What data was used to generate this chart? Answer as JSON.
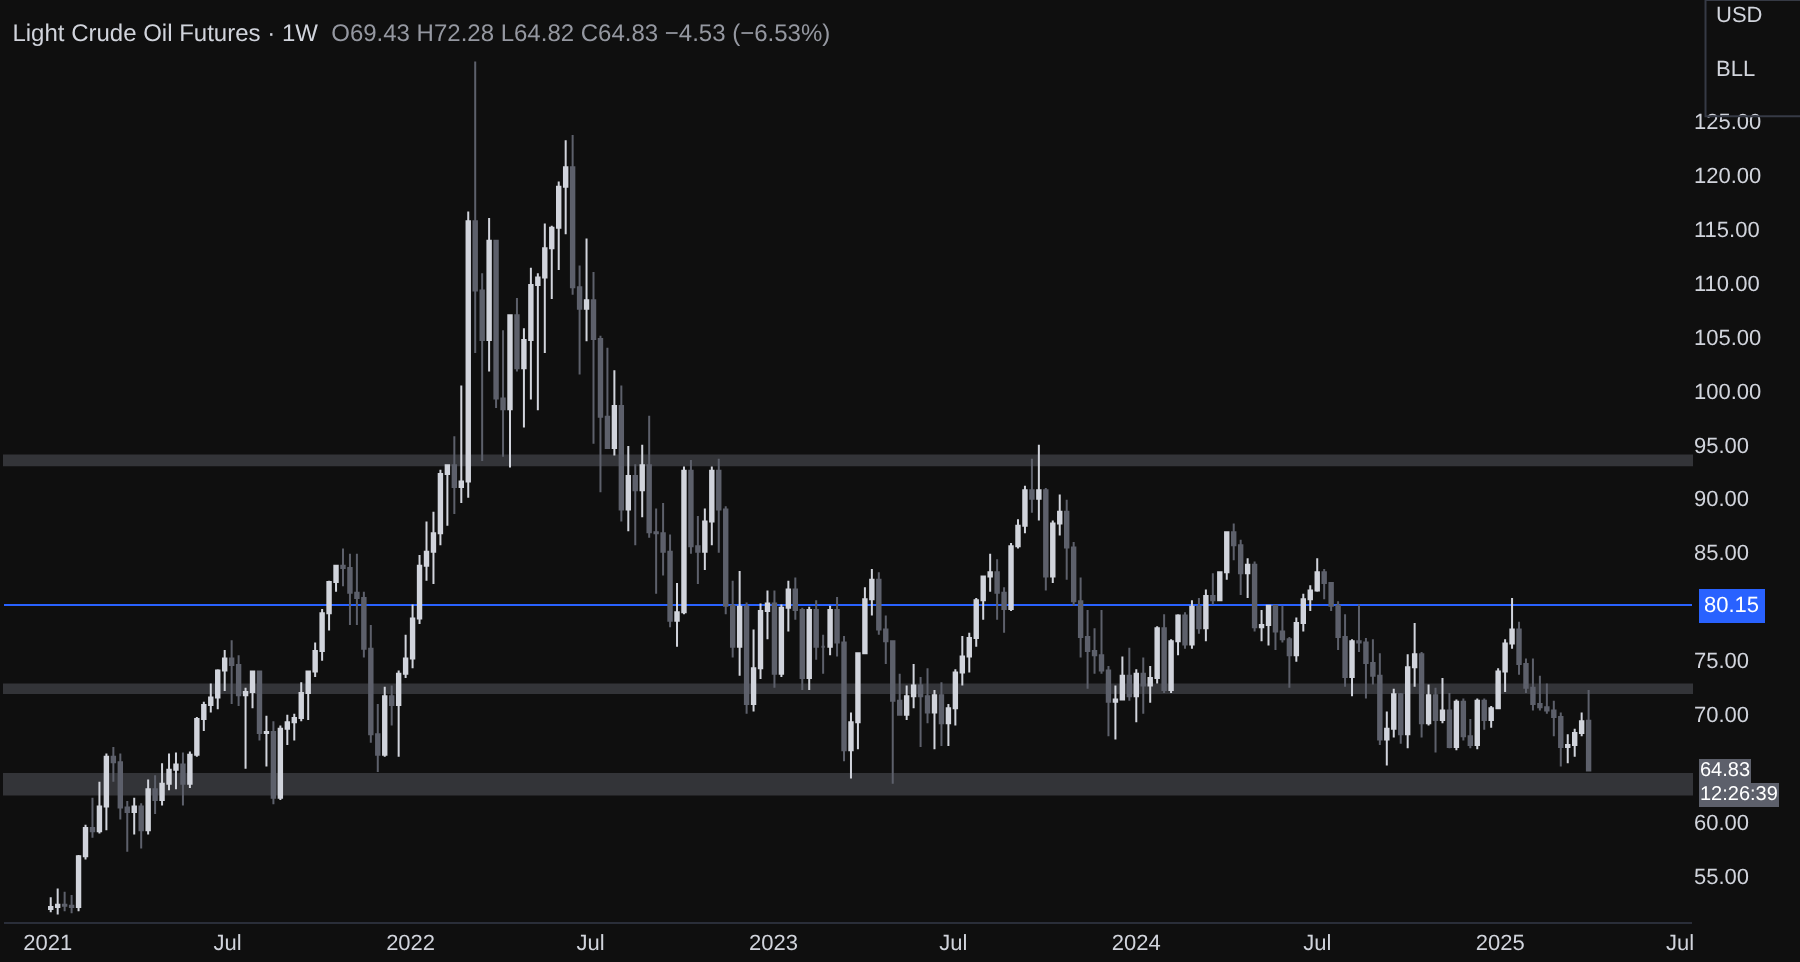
{
  "chart_data": {
    "type": "candlestick",
    "title": "Light Crude Oil Futures · 1W",
    "subtitle": "O69.43 H72.28 L64.82 C64.83 −4.53 (−6.53%)",
    "x": [
      "2021-01-04",
      "2021-01-11",
      "2021-01-18",
      "2021-01-25",
      "2021-02-01",
      "2021-02-08",
      "2021-02-15",
      "2021-02-22",
      "2021-03-01",
      "2021-03-08",
      "2021-03-15",
      "2021-03-22",
      "2021-03-29",
      "2021-04-05",
      "2021-04-12",
      "2021-04-19",
      "2021-04-26",
      "2021-05-03",
      "2021-05-10",
      "2021-05-17",
      "2021-05-24",
      "2021-05-31",
      "2021-06-07",
      "2021-06-14",
      "2021-06-21",
      "2021-06-28",
      "2021-07-05",
      "2021-07-12",
      "2021-07-19",
      "2021-07-26",
      "2021-08-02",
      "2021-08-09",
      "2021-08-16",
      "2021-08-23",
      "2021-08-30",
      "2021-09-06",
      "2021-09-13",
      "2021-09-20",
      "2021-09-27",
      "2021-10-04",
      "2021-10-11",
      "2021-10-18",
      "2021-10-25",
      "2021-11-01",
      "2021-11-08",
      "2021-11-15",
      "2021-11-22",
      "2021-11-29",
      "2021-12-06",
      "2021-12-13",
      "2021-12-20",
      "2021-12-27",
      "2022-01-03",
      "2022-01-10",
      "2022-01-17",
      "2022-01-24",
      "2022-01-31",
      "2022-02-07",
      "2022-02-14",
      "2022-02-21",
      "2022-02-28",
      "2022-03-07",
      "2022-03-14",
      "2022-03-21",
      "2022-03-28",
      "2022-04-04",
      "2022-04-11",
      "2022-04-18",
      "2022-04-25",
      "2022-05-02",
      "2022-05-09",
      "2022-05-16",
      "2022-05-23",
      "2022-05-30",
      "2022-06-06",
      "2022-06-13",
      "2022-06-20",
      "2022-06-27",
      "2022-07-04",
      "2022-07-11",
      "2022-07-18",
      "2022-07-25",
      "2022-08-01",
      "2022-08-08",
      "2022-08-15",
      "2022-08-22",
      "2022-08-29",
      "2022-09-05",
      "2022-09-12",
      "2022-09-19",
      "2022-09-26",
      "2022-10-03",
      "2022-10-10",
      "2022-10-17",
      "2022-10-24",
      "2022-10-31",
      "2022-11-07",
      "2022-11-14",
      "2022-11-21",
      "2022-11-28",
      "2022-12-05",
      "2022-12-12",
      "2022-12-19",
      "2022-12-26",
      "2023-01-02",
      "2023-01-09",
      "2023-01-16",
      "2023-01-23",
      "2023-01-30",
      "2023-02-06",
      "2023-02-13",
      "2023-02-20",
      "2023-02-27",
      "2023-03-06",
      "2023-03-13",
      "2023-03-20",
      "2023-03-27",
      "2023-04-03",
      "2023-04-10",
      "2023-04-17",
      "2023-04-24",
      "2023-05-01",
      "2023-05-08",
      "2023-05-15",
      "2023-05-22",
      "2023-05-29",
      "2023-06-05",
      "2023-06-12",
      "2023-06-19",
      "2023-06-26",
      "2023-07-03",
      "2023-07-10",
      "2023-07-17",
      "2023-07-24",
      "2023-07-31",
      "2023-08-07",
      "2023-08-14",
      "2023-08-21",
      "2023-08-28",
      "2023-09-04",
      "2023-09-11",
      "2023-09-18",
      "2023-09-25",
      "2023-10-02",
      "2023-10-09",
      "2023-10-16",
      "2023-10-23",
      "2023-10-30",
      "2023-11-06",
      "2023-11-13",
      "2023-11-20",
      "2023-11-27",
      "2023-12-04",
      "2023-12-11",
      "2023-12-18",
      "2023-12-25",
      "2024-01-01",
      "2024-01-08",
      "2024-01-15",
      "2024-01-22",
      "2024-01-29",
      "2024-02-05",
      "2024-02-12",
      "2024-02-19",
      "2024-02-26",
      "2024-03-04",
      "2024-03-11",
      "2024-03-18",
      "2024-03-25",
      "2024-04-01",
      "2024-04-08",
      "2024-04-15",
      "2024-04-22",
      "2024-04-29",
      "2024-05-06",
      "2024-05-13",
      "2024-05-20",
      "2024-05-27",
      "2024-06-03",
      "2024-06-10",
      "2024-06-17",
      "2024-06-24",
      "2024-07-01",
      "2024-07-08",
      "2024-07-15",
      "2024-07-22",
      "2024-07-29",
      "2024-08-05",
      "2024-08-12",
      "2024-08-19",
      "2024-08-26",
      "2024-09-02",
      "2024-09-09",
      "2024-09-16",
      "2024-09-23",
      "2024-09-30",
      "2024-10-07",
      "2024-10-14",
      "2024-10-21",
      "2024-10-28",
      "2024-11-04",
      "2024-11-11",
      "2024-11-18",
      "2024-11-25",
      "2024-12-02",
      "2024-12-09",
      "2024-12-16",
      "2024-12-23",
      "2024-12-30",
      "2025-01-06",
      "2025-01-13",
      "2025-01-20",
      "2025-01-27",
      "2025-02-03",
      "2025-02-10",
      "2025-02-17",
      "2025-02-24",
      "2025-03-03",
      "2025-03-10",
      "2025-03-17",
      "2025-03-24",
      "2025-03-31"
    ],
    "ohlc": [
      [
        52.0,
        53.1,
        51.7,
        52.2
      ],
      [
        52.2,
        53.9,
        51.5,
        52.4
      ],
      [
        52.4,
        53.6,
        51.8,
        52.3
      ],
      [
        52.3,
        53.3,
        51.6,
        52.2
      ],
      [
        52.2,
        57.0,
        51.8,
        56.9
      ],
      [
        56.9,
        59.8,
        56.6,
        59.5
      ],
      [
        59.5,
        62.3,
        58.6,
        59.2
      ],
      [
        59.2,
        63.8,
        59.0,
        61.5
      ],
      [
        61.5,
        66.4,
        59.3,
        66.1
      ],
      [
        66.1,
        67.0,
        63.8,
        65.6
      ],
      [
        65.6,
        66.4,
        60.3,
        61.4
      ],
      [
        61.4,
        62.0,
        57.3,
        61.0
      ],
      [
        61.0,
        62.3,
        58.9,
        61.5
      ],
      [
        61.5,
        61.8,
        57.6,
        59.3
      ],
      [
        59.3,
        64.0,
        58.9,
        63.1
      ],
      [
        63.1,
        64.4,
        60.8,
        62.1
      ],
      [
        62.1,
        65.5,
        61.6,
        63.6
      ],
      [
        63.6,
        66.4,
        63.0,
        64.9
      ],
      [
        64.9,
        66.5,
        63.1,
        65.4
      ],
      [
        65.4,
        66.5,
        61.6,
        63.6
      ],
      [
        63.6,
        66.6,
        63.2,
        66.3
      ],
      [
        66.3,
        69.8,
        66.1,
        69.6
      ],
      [
        69.6,
        71.2,
        68.5,
        70.9
      ],
      [
        70.9,
        72.9,
        70.2,
        71.6
      ],
      [
        71.6,
        74.2,
        70.5,
        74.1
      ],
      [
        74.1,
        76.0,
        72.2,
        75.2
      ],
      [
        75.2,
        76.9,
        71.0,
        74.6
      ],
      [
        74.6,
        75.5,
        70.8,
        71.8
      ],
      [
        71.8,
        72.5,
        65.0,
        72.1
      ],
      [
        72.1,
        74.0,
        70.6,
        74.0
      ],
      [
        74.0,
        74.1,
        67.6,
        68.3
      ],
      [
        68.3,
        69.9,
        65.2,
        68.4
      ],
      [
        68.4,
        69.4,
        61.7,
        62.3
      ],
      [
        62.3,
        69.0,
        62.1,
        68.7
      ],
      [
        68.7,
        70.0,
        67.2,
        69.3
      ],
      [
        69.3,
        70.1,
        67.6,
        69.7
      ],
      [
        69.7,
        73.0,
        69.4,
        72.0
      ],
      [
        72.0,
        74.0,
        69.5,
        74.0
      ],
      [
        74.0,
        76.7,
        73.5,
        75.9
      ],
      [
        75.9,
        79.8,
        75.0,
        79.4
      ],
      [
        79.4,
        82.4,
        77.8,
        82.3
      ],
      [
        82.3,
        83.9,
        81.4,
        83.8
      ],
      [
        83.8,
        85.4,
        81.9,
        83.6
      ],
      [
        83.6,
        84.9,
        78.3,
        81.3
      ],
      [
        81.3,
        84.9,
        78.3,
        80.8
      ],
      [
        80.8,
        81.4,
        75.3,
        76.1
      ],
      [
        76.1,
        78.3,
        67.4,
        68.2
      ],
      [
        68.2,
        71.0,
        64.7,
        66.3
      ],
      [
        66.3,
        72.6,
        66.1,
        71.7
      ],
      [
        71.7,
        72.7,
        69.0,
        70.9
      ],
      [
        70.9,
        74.1,
        66.1,
        73.8
      ],
      [
        73.8,
        77.4,
        73.4,
        75.2
      ],
      [
        75.2,
        80.2,
        74.3,
        78.9
      ],
      [
        78.9,
        84.8,
        78.4,
        83.8
      ],
      [
        83.8,
        87.9,
        82.4,
        85.1
      ],
      [
        85.1,
        88.8,
        82.1,
        86.8
      ],
      [
        86.8,
        92.7,
        85.7,
        92.3
      ],
      [
        92.3,
        93.2,
        87.5,
        93.1
      ],
      [
        93.1,
        95.8,
        88.6,
        91.1
      ],
      [
        91.1,
        100.5,
        89.6,
        91.6
      ],
      [
        91.6,
        116.6,
        90.1,
        115.7
      ],
      [
        115.7,
        130.5,
        103.5,
        109.3
      ],
      [
        109.3,
        110.9,
        93.5,
        104.7
      ],
      [
        104.7,
        116.0,
        101.8,
        113.9
      ],
      [
        113.9,
        114.0,
        98.4,
        99.3
      ],
      [
        99.3,
        105.6,
        93.9,
        98.3
      ],
      [
        98.3,
        107.0,
        92.9,
        107.0
      ],
      [
        107.0,
        108.6,
        101.8,
        102.1
      ],
      [
        102.1,
        105.8,
        96.6,
        104.7
      ],
      [
        104.7,
        111.4,
        99.2,
        109.8
      ],
      [
        109.8,
        110.9,
        98.2,
        110.5
      ],
      [
        110.5,
        115.5,
        103.5,
        113.2
      ],
      [
        113.2,
        115.3,
        108.5,
        115.1
      ],
      [
        115.1,
        119.4,
        111.2,
        118.9
      ],
      [
        118.9,
        123.2,
        114.5,
        120.7
      ],
      [
        120.7,
        123.7,
        108.9,
        109.6
      ],
      [
        109.6,
        111.6,
        101.5,
        107.6
      ],
      [
        107.6,
        114.1,
        104.6,
        108.4
      ],
      [
        108.4,
        111.0,
        95.1,
        104.8
      ],
      [
        104.8,
        105.1,
        90.6,
        97.6
      ],
      [
        97.6,
        104.0,
        94.7,
        94.7
      ],
      [
        94.7,
        101.9,
        94.0,
        98.6
      ],
      [
        98.6,
        100.5,
        87.9,
        89.0
      ],
      [
        89.0,
        94.9,
        87.0,
        92.1
      ],
      [
        92.1,
        93.2,
        85.7,
        90.8
      ],
      [
        90.8,
        95.0,
        88.3,
        93.1
      ],
      [
        93.1,
        97.7,
        86.4,
        86.9
      ],
      [
        86.9,
        89.1,
        81.2,
        86.8
      ],
      [
        86.8,
        89.6,
        82.9,
        85.1
      ],
      [
        85.1,
        86.7,
        78.1,
        78.7
      ],
      [
        78.7,
        82.2,
        76.3,
        79.5
      ],
      [
        79.5,
        93.0,
        79.3,
        92.6
      ],
      [
        92.6,
        93.6,
        84.9,
        85.6
      ],
      [
        85.6,
        88.4,
        82.1,
        85.1
      ],
      [
        85.1,
        89.1,
        83.4,
        87.9
      ],
      [
        87.9,
        93.0,
        85.7,
        92.6
      ],
      [
        92.6,
        93.7,
        85.0,
        89.0
      ],
      [
        89.0,
        89.3,
        79.3,
        80.1
      ],
      [
        80.1,
        82.4,
        75.3,
        76.3
      ],
      [
        76.3,
        83.3,
        73.6,
        80.0
      ],
      [
        80.0,
        80.4,
        70.1,
        71.0
      ],
      [
        71.0,
        77.9,
        70.3,
        74.3
      ],
      [
        74.3,
        80.3,
        73.3,
        79.6
      ],
      [
        79.6,
        81.5,
        77.0,
        80.3
      ],
      [
        80.3,
        81.5,
        72.5,
        73.8
      ],
      [
        73.8,
        80.2,
        73.5,
        79.9
      ],
      [
        79.9,
        82.4,
        77.7,
        81.6
      ],
      [
        81.6,
        82.7,
        78.8,
        79.7
      ],
      [
        79.7,
        79.9,
        72.3,
        73.4
      ],
      [
        73.4,
        80.0,
        72.3,
        79.7
      ],
      [
        79.7,
        80.6,
        75.1,
        76.3
      ],
      [
        76.3,
        77.4,
        73.8,
        76.3
      ],
      [
        76.3,
        80.1,
        75.5,
        79.7
      ],
      [
        79.7,
        80.9,
        75.4,
        76.7
      ],
      [
        76.7,
        77.3,
        65.7,
        66.7
      ],
      [
        66.7,
        70.2,
        64.1,
        69.3
      ],
      [
        69.3,
        75.7,
        66.8,
        75.7
      ],
      [
        75.7,
        81.8,
        75.6,
        80.7
      ],
      [
        80.7,
        83.5,
        79.2,
        82.5
      ],
      [
        82.5,
        83.2,
        77.4,
        77.9
      ],
      [
        77.9,
        79.2,
        74.7,
        76.8
      ],
      [
        76.8,
        76.9,
        63.6,
        71.3
      ],
      [
        71.3,
        73.8,
        70.0,
        70.0
      ],
      [
        70.0,
        72.7,
        69.5,
        71.7
      ],
      [
        71.7,
        74.7,
        70.6,
        72.7
      ],
      [
        72.7,
        73.5,
        67.0,
        71.7
      ],
      [
        71.7,
        74.3,
        69.2,
        70.2
      ],
      [
        70.2,
        72.3,
        66.8,
        71.8
      ],
      [
        71.8,
        73.0,
        67.1,
        69.2
      ],
      [
        69.2,
        71.0,
        67.1,
        70.6
      ],
      [
        70.6,
        74.2,
        69.0,
        73.9
      ],
      [
        73.9,
        77.3,
        72.7,
        75.4
      ],
      [
        75.4,
        77.6,
        73.9,
        77.1
      ],
      [
        77.1,
        80.8,
        76.3,
        80.6
      ],
      [
        80.6,
        82.9,
        78.8,
        82.8
      ],
      [
        82.8,
        84.9,
        81.4,
        83.2
      ],
      [
        83.2,
        84.4,
        78.8,
        81.3
      ],
      [
        81.3,
        81.8,
        77.6,
        79.8
      ],
      [
        79.8,
        85.9,
        79.6,
        85.6
      ],
      [
        85.6,
        88.1,
        85.4,
        87.5
      ],
      [
        87.5,
        91.2,
        86.8,
        90.8
      ],
      [
        90.8,
        93.7,
        88.7,
        90.0
      ],
      [
        90.0,
        95.0,
        88.0,
        90.8
      ],
      [
        90.8,
        91.0,
        81.5,
        82.8
      ],
      [
        82.8,
        88.0,
        82.2,
        87.7
      ],
      [
        87.7,
        90.4,
        86.6,
        88.8
      ],
      [
        88.8,
        89.9,
        82.5,
        85.5
      ],
      [
        85.5,
        86.0,
        80.1,
        80.5
      ],
      [
        80.5,
        82.7,
        75.3,
        77.2
      ],
      [
        77.2,
        79.7,
        72.4,
        75.9
      ],
      [
        75.9,
        78.0,
        73.8,
        75.5
      ],
      [
        75.5,
        79.7,
        73.8,
        74.1
      ],
      [
        74.1,
        74.5,
        68.0,
        71.2
      ],
      [
        71.2,
        72.7,
        67.7,
        71.4
      ],
      [
        71.4,
        75.4,
        71.4,
        73.6
      ],
      [
        73.6,
        76.2,
        71.3,
        71.7
      ],
      [
        71.7,
        74.2,
        69.3,
        73.8
      ],
      [
        73.8,
        75.3,
        70.1,
        72.7
      ],
      [
        72.7,
        74.5,
        71.1,
        73.4
      ],
      [
        73.4,
        78.2,
        72.9,
        78.0
      ],
      [
        78.0,
        79.3,
        72.0,
        72.3
      ],
      [
        72.3,
        77.0,
        72.0,
        76.8
      ],
      [
        76.8,
        79.3,
        75.5,
        79.2
      ],
      [
        79.2,
        79.5,
        76.1,
        76.5
      ],
      [
        76.5,
        80.6,
        76.1,
        80.0
      ],
      [
        80.0,
        80.8,
        77.5,
        78.0
      ],
      [
        78.0,
        81.6,
        76.8,
        81.0
      ],
      [
        81.0,
        83.1,
        80.2,
        80.6
      ],
      [
        80.6,
        83.2,
        80.6,
        83.2
      ],
      [
        83.2,
        87.0,
        82.5,
        86.9
      ],
      [
        86.9,
        87.7,
        84.3,
        85.7
      ],
      [
        85.7,
        86.2,
        81.1,
        83.1
      ],
      [
        83.1,
        84.5,
        80.8,
        83.9
      ],
      [
        83.9,
        84.2,
        77.7,
        78.1
      ],
      [
        78.1,
        79.7,
        76.8,
        78.3
      ],
      [
        78.3,
        80.1,
        76.4,
        80.1
      ],
      [
        80.1,
        80.1,
        76.0,
        77.7
      ],
      [
        77.7,
        80.1,
        76.7,
        77.0
      ],
      [
        77.0,
        77.2,
        72.5,
        75.5
      ],
      [
        75.5,
        79.0,
        74.9,
        78.5
      ],
      [
        78.5,
        81.2,
        77.7,
        80.7
      ],
      [
        80.7,
        82.0,
        79.6,
        81.5
      ],
      [
        81.5,
        84.5,
        81.4,
        83.2
      ],
      [
        83.2,
        83.5,
        80.7,
        82.2
      ],
      [
        82.2,
        82.3,
        79.6,
        80.1
      ],
      [
        80.1,
        80.5,
        76.0,
        77.2
      ],
      [
        77.2,
        79.3,
        72.6,
        73.5
      ],
      [
        73.5,
        77.0,
        71.7,
        76.8
      ],
      [
        76.8,
        80.2,
        75.8,
        76.7
      ],
      [
        76.7,
        77.1,
        71.5,
        74.8
      ],
      [
        74.8,
        77.0,
        72.8,
        73.6
      ],
      [
        73.6,
        75.7,
        67.2,
        67.7
      ],
      [
        67.7,
        70.3,
        65.3,
        68.7
      ],
      [
        68.7,
        72.4,
        67.9,
        71.9
      ],
      [
        71.9,
        72.0,
        67.3,
        68.2
      ],
      [
        68.2,
        75.6,
        66.9,
        74.4
      ],
      [
        74.4,
        78.5,
        72.6,
        75.6
      ],
      [
        75.6,
        75.8,
        67.9,
        69.2
      ],
      [
        69.2,
        72.8,
        69.0,
        71.8
      ],
      [
        71.8,
        72.5,
        66.5,
        69.5
      ],
      [
        69.5,
        73.4,
        69.2,
        70.4
      ],
      [
        70.4,
        72.0,
        66.9,
        67.0
      ],
      [
        67.0,
        71.4,
        66.7,
        71.2
      ],
      [
        71.2,
        71.5,
        67.6,
        68.0
      ],
      [
        68.0,
        69.6,
        66.9,
        67.2
      ],
      [
        67.2,
        71.5,
        66.8,
        71.3
      ],
      [
        71.3,
        71.5,
        68.6,
        69.5
      ],
      [
        69.5,
        70.8,
        68.8,
        70.6
      ],
      [
        70.6,
        74.3,
        70.6,
        74.0
      ],
      [
        74.0,
        77.0,
        72.1,
        76.6
      ],
      [
        76.6,
        80.8,
        76.1,
        77.9
      ],
      [
        77.9,
        78.6,
        73.7,
        74.7
      ],
      [
        74.7,
        75.2,
        72.0,
        72.5
      ],
      [
        72.5,
        75.2,
        70.4,
        71.0
      ],
      [
        71.0,
        73.6,
        70.4,
        70.7
      ],
      [
        70.7,
        72.9,
        70.1,
        70.4
      ],
      [
        70.4,
        71.3,
        68.0,
        69.8
      ],
      [
        69.8,
        70.2,
        65.2,
        67.0
      ],
      [
        67.0,
        68.2,
        65.5,
        67.2
      ],
      [
        67.2,
        68.7,
        66.1,
        68.3
      ],
      [
        68.3,
        70.2,
        68.0,
        69.4
      ],
      [
        69.43,
        72.28,
        64.82,
        64.83
      ]
    ],
    "colors": [
      "#d1d4dc",
      "#d1d4dc",
      "#5d606b",
      "#5d606b",
      "#d1d4dc",
      "#d1d4dc",
      "#5d606b",
      "#d1d4dc",
      "#d1d4dc",
      "#5d606b",
      "#5d606b",
      "#5d606b",
      "#d1d4dc",
      "#5d606b",
      "#d1d4dc",
      "#5d606b",
      "#d1d4dc",
      "#d1d4dc",
      "#d1d4dc",
      "#5d606b",
      "#d1d4dc",
      "#d1d4dc",
      "#d1d4dc",
      "#d1d4dc",
      "#d1d4dc",
      "#d1d4dc",
      "#5d606b",
      "#5d606b",
      "#d1d4dc",
      "#d1d4dc",
      "#5d606b",
      "#d1d4dc",
      "#5d606b",
      "#d1d4dc",
      "#d1d4dc",
      "#d1d4dc",
      "#d1d4dc",
      "#d1d4dc",
      "#d1d4dc",
      "#d1d4dc",
      "#d1d4dc",
      "#d1d4dc",
      "#5d606b",
      "#5d606b",
      "#5d606b",
      "#5d606b",
      "#5d606b",
      "#5d606b",
      "#d1d4dc",
      "#5d606b",
      "#d1d4dc",
      "#d1d4dc",
      "#d1d4dc",
      "#d1d4dc",
      "#d1d4dc",
      "#d1d4dc",
      "#d1d4dc",
      "#d1d4dc",
      "#5d606b",
      "#d1d4dc",
      "#d1d4dc",
      "#5d606b",
      "#5d606b",
      "#d1d4dc",
      "#5d606b",
      "#5d606b",
      "#d1d4dc",
      "#5d606b",
      "#d1d4dc",
      "#d1d4dc",
      "#d1d4dc",
      "#d1d4dc",
      "#d1d4dc",
      "#d1d4dc",
      "#d1d4dc",
      "#5d606b",
      "#5d606b",
      "#d1d4dc",
      "#5d606b",
      "#5d606b",
      "#5d606b",
      "#d1d4dc",
      "#5d606b",
      "#d1d4dc",
      "#5d606b",
      "#d1d4dc",
      "#5d606b",
      "#5d606b",
      "#5d606b",
      "#5d606b",
      "#d1d4dc",
      "#d1d4dc",
      "#5d606b",
      "#5d606b",
      "#d1d4dc",
      "#d1d4dc",
      "#5d606b",
      "#5d606b",
      "#5d606b",
      "#d1d4dc",
      "#5d606b",
      "#d1d4dc",
      "#d1d4dc",
      "#d1d4dc",
      "#5d606b",
      "#d1d4dc",
      "#d1d4dc",
      "#5d606b",
      "#5d606b",
      "#d1d4dc",
      "#5d606b",
      "#5d606b",
      "#d1d4dc",
      "#5d606b",
      "#5d606b",
      "#d1d4dc",
      "#d1d4dc",
      "#d1d4dc",
      "#d1d4dc",
      "#5d606b",
      "#5d606b",
      "#5d606b",
      "#5d606b",
      "#d1d4dc",
      "#d1d4dc",
      "#5d606b",
      "#5d606b",
      "#d1d4dc",
      "#5d606b",
      "#d1d4dc",
      "#d1d4dc",
      "#d1d4dc",
      "#d1d4dc",
      "#d1d4dc",
      "#d1d4dc",
      "#d1d4dc",
      "#5d606b",
      "#5d606b",
      "#d1d4dc",
      "#d1d4dc",
      "#d1d4dc",
      "#5d606b",
      "#d1d4dc",
      "#5d606b",
      "#d1d4dc",
      "#d1d4dc",
      "#5d606b",
      "#5d606b",
      "#5d606b",
      "#5d606b",
      "#5d606b",
      "#5d606b",
      "#5d606b",
      "#d1d4dc",
      "#d1d4dc",
      "#5d606b",
      "#d1d4dc",
      "#5d606b",
      "#d1d4dc",
      "#d1d4dc",
      "#5d606b",
      "#d1d4dc",
      "#d1d4dc",
      "#5d606b",
      "#d1d4dc",
      "#5d606b",
      "#d1d4dc",
      "#5d606b",
      "#d1d4dc",
      "#d1d4dc",
      "#5d606b",
      "#5d606b",
      "#d1d4dc",
      "#5d606b",
      "#d1d4dc",
      "#d1d4dc",
      "#5d606b",
      "#5d606b",
      "#5d606b",
      "#d1d4dc",
      "#d1d4dc",
      "#d1d4dc",
      "#d1d4dc",
      "#5d606b",
      "#5d606b",
      "#5d606b",
      "#5d606b",
      "#d1d4dc",
      "#5d606b",
      "#5d606b",
      "#5d606b",
      "#5d606b",
      "#d1d4dc",
      "#d1d4dc",
      "#5d606b",
      "#d1d4dc",
      "#d1d4dc",
      "#5d606b",
      "#d1d4dc",
      "#5d606b",
      "#d1d4dc",
      "#5d606b",
      "#d1d4dc",
      "#5d606b",
      "#5d606b",
      "#d1d4dc",
      "#5d606b",
      "#d1d4dc",
      "#d1d4dc",
      "#d1d4dc",
      "#d1d4dc",
      "#5d606b",
      "#5d606b",
      "#5d606b",
      "#5d606b",
      "#5d606b",
      "#5d606b",
      "#5d606b",
      "#d1d4dc",
      "#d1d4dc",
      "#d1d4dc",
      "#5d606b"
    ],
    "xlim": [
      "2020-11-18",
      "2025-07-13"
    ],
    "xticks": [
      {
        "value": "2021-01-01",
        "label": "2021"
      },
      {
        "value": "2021-07-01",
        "label": "Jul"
      },
      {
        "value": "2022-01-01",
        "label": "2022"
      },
      {
        "value": "2022-07-01",
        "label": "Jul"
      },
      {
        "value": "2023-01-01",
        "label": "2023"
      },
      {
        "value": "2023-07-01",
        "label": "Jul"
      },
      {
        "value": "2024-01-01",
        "label": "2024"
      },
      {
        "value": "2024-07-01",
        "label": "Jul"
      },
      {
        "value": "2025-01-01",
        "label": "2025"
      },
      {
        "value": "2025-07-01",
        "label": "Jul"
      }
    ],
    "ylim": [
      50.8,
      136.2
    ],
    "yticks": [
      {
        "value": 55,
        "label": "55.00"
      },
      {
        "value": 60,
        "label": "60.00"
      },
      {
        "value": 70,
        "label": "70.00"
      },
      {
        "value": 75,
        "label": "75.00"
      },
      {
        "value": 85,
        "label": "85.00"
      },
      {
        "value": 90,
        "label": "90.00"
      },
      {
        "value": 95,
        "label": "95.00"
      },
      {
        "value": 100,
        "label": "100.00"
      },
      {
        "value": 105,
        "label": "105.00"
      },
      {
        "value": 110,
        "label": "110.00"
      },
      {
        "value": 115,
        "label": "115.00"
      },
      {
        "value": 120,
        "label": "120.00"
      },
      {
        "value": 125,
        "label": "125.00"
      }
    ],
    "bands": [
      {
        "axis": "y",
        "from": 93.1,
        "to": 94.0,
        "color": "#787b86"
      },
      {
        "axis": "y",
        "from": 62.6,
        "to": 64.5,
        "color": "#787b86"
      },
      {
        "axis": "y",
        "from": 72.0,
        "to": 72.8,
        "color": "#787b86"
      }
    ],
    "ref_lines": [
      {
        "axis": "y",
        "value": 80.15,
        "label": "80.15",
        "color": "#2962ff"
      }
    ],
    "annotations": [
      "64.83",
      "12:26:39",
      "USD",
      "BLL"
    ],
    "grid": false,
    "legend": false
  }
}
